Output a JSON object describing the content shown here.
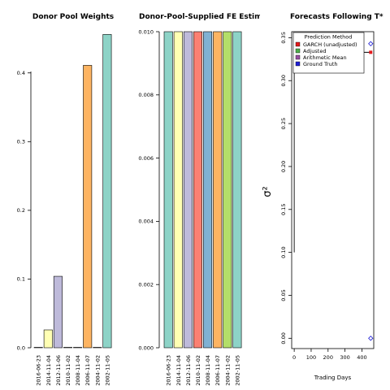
{
  "chart_data": [
    {
      "type": "bar",
      "title": "Donor Pool Weights",
      "categories": [
        "2016-06-23",
        "2014-11-04",
        "2012-11-06",
        "2010-11-02",
        "2008-11-04",
        "2006-11-07",
        "2004-11-02",
        "2002-11-05"
      ],
      "values": [
        0.0,
        0.026,
        0.104,
        0.0,
        0.0,
        0.411,
        0.0,
        0.456
      ],
      "colors": [
        "#8dd3c7",
        "#ffffb3",
        "#bebada",
        "#fb8072",
        "#80b1d3",
        "#fdb462",
        "#b3de69",
        "#8dd3c7"
      ],
      "ylim": [
        0,
        0.46
      ],
      "yticks": [
        "0.0",
        "0.1",
        "0.2",
        "0.3",
        "0.4"
      ],
      "xlabel": "",
      "ylabel": ""
    },
    {
      "type": "bar",
      "title": "Donor-Pool-Supplied FE Estimates",
      "categories": [
        "2016-06-23",
        "2014-11-04",
        "2012-11-06",
        "2010-11-02",
        "2008-11-04",
        "2006-11-07",
        "2004-11-02",
        "2002-11-05"
      ],
      "values": [
        0.01,
        0.01,
        0.01,
        0.01,
        0.01,
        0.01,
        0.01,
        0.01
      ],
      "colors": [
        "#8dd3c7",
        "#ffffb3",
        "#bebada",
        "#fb8072",
        "#80b1d3",
        "#fdb462",
        "#b3de69",
        "#8dd3c7"
      ],
      "ylim": [
        0,
        0.01
      ],
      "yticks": [
        "0.000",
        "0.002",
        "0.004",
        "0.006",
        "0.008",
        "0.010"
      ],
      "xlabel": "",
      "ylabel": ""
    },
    {
      "type": "line",
      "title": "Forecasts Following T*",
      "xlabel": "Trading Days",
      "ylabel": "σ²",
      "xlim": [
        -15,
        470
      ],
      "ylim": [
        -0.012,
        0.357
      ],
      "xticks": [
        "0",
        "100",
        "200",
        "300",
        "400"
      ],
      "yticks": [
        "0.00",
        "0.05",
        "0.10",
        "0.15",
        "0.20",
        "0.25",
        "0.30",
        "0.35"
      ],
      "series": [
        {
          "name": "GARCH (unadjusted)",
          "color": "#e41a1c",
          "marker": "square",
          "points": [
            [
              452,
              0.333
            ]
          ]
        },
        {
          "name": "Adjusted",
          "color": "#4daf4a",
          "marker": "square",
          "points": []
        },
        {
          "name": "Arithmetic Mean",
          "color": "#984ea3",
          "marker": "square",
          "points": []
        },
        {
          "name": "Ground Truth",
          "color": "#1f1fd6",
          "marker": "diamond",
          "points": [
            [
              452,
              0.343
            ],
            [
              452,
              0.0
            ]
          ]
        }
      ],
      "line": {
        "color": "#000000",
        "points": [
          [
            0,
            0.1
          ],
          [
            0,
            0.319
          ],
          [
            1,
            0.333
          ],
          [
            455,
            0.333
          ]
        ]
      },
      "legend": {
        "title": "Prediction Method",
        "placement": "top-right"
      }
    }
  ]
}
